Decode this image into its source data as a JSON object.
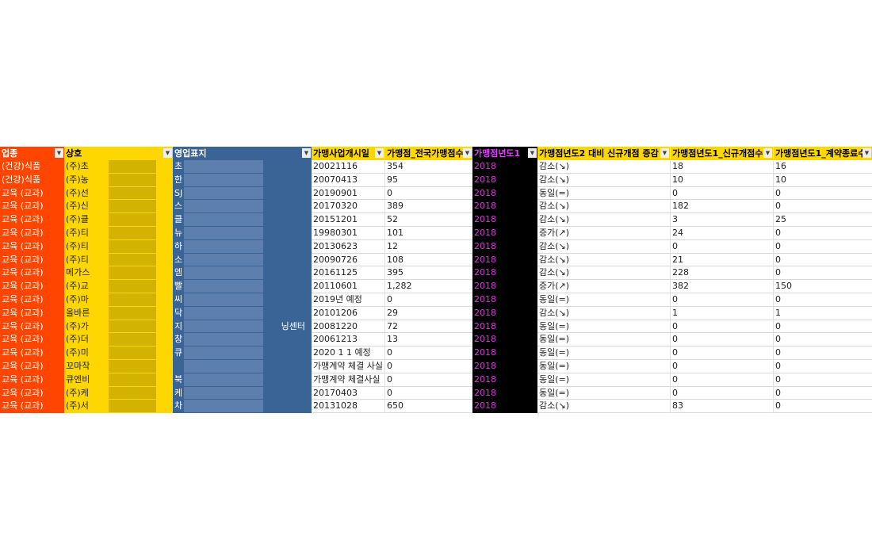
{
  "headers": [
    "업종",
    "상호",
    "영업표지",
    "가맹사업개시일",
    "가맹점_전국가맹점수",
    "가맹점년도1",
    "가맹점년도2 대비 신규개점 증감",
    "가맹점년도1_신규개점수",
    "가맹점년도1_계약종료수"
  ],
  "rows": [
    [
      "(건강)식품",
      "(주)초",
      "초",
      "20021116",
      "354",
      "2018",
      "감소(↘)",
      "18",
      "16"
    ],
    [
      "(건강)식품",
      "(주)농",
      "한",
      "20070413",
      "95",
      "2018",
      "감소(↘)",
      "10",
      "10"
    ],
    [
      "교육 (교과)",
      "(주)선",
      "SJ",
      "20190901",
      "0",
      "2018",
      "동일(=)",
      "0",
      "0"
    ],
    [
      "교육 (교과)",
      "(주)신",
      "스",
      "20170320",
      "389",
      "2018",
      "감소(↘)",
      "182",
      "0"
    ],
    [
      "교육 (교과)",
      "(주)클",
      "클",
      "20151201",
      "52",
      "2018",
      "감소(↘)",
      "3",
      "25"
    ],
    [
      "교육 (교과)",
      "(주)티",
      "뉴",
      "19980301",
      "101",
      "2018",
      "증가(↗)",
      "24",
      "0"
    ],
    [
      "교육 (교과)",
      "(주)티",
      "하",
      "20130623",
      "12",
      "2018",
      "감소(↘)",
      "0",
      "0"
    ],
    [
      "교육 (교과)",
      "(주)티",
      "소",
      "20090726",
      "108",
      "2018",
      "감소(↘)",
      "21",
      "0"
    ],
    [
      "교육 (교과)",
      "메가스",
      "엠",
      "20161125",
      "395",
      "2018",
      "감소(↘)",
      "228",
      "0"
    ],
    [
      "교육 (교과)",
      "(주)교",
      "빨",
      "20110601",
      "1,282",
      "2018",
      "증가(↗)",
      "382",
      "150"
    ],
    [
      "교육 (교과)",
      "(주)마",
      "씨",
      "2019년 예정",
      "0",
      "2018",
      "동일(=)",
      "0",
      "0"
    ],
    [
      "교육 (교과)",
      "올바른",
      "닥",
      "20101206",
      "29",
      "2018",
      "감소(↘)",
      "1",
      "1"
    ],
    [
      "교육 (교과)",
      "(주)가",
      "지",
      "20081220",
      "72",
      "2018",
      "동일(=)",
      "0",
      "0"
    ],
    [
      "교육 (교과)",
      "(주)더",
      "창",
      "20061213",
      "13",
      "2018",
      "동일(=)",
      "0",
      "0"
    ],
    [
      "교육 (교과)",
      "(주)미",
      "큐",
      "2020 1 1 예정",
      "0",
      "2018",
      "동일(=)",
      "0",
      "0"
    ],
    [
      "교육 (교과)",
      "꼬마작",
      "",
      "가맹계약 체결 사실",
      "0",
      "2018",
      "동일(=)",
      "0",
      "0"
    ],
    [
      "교육 (교과)",
      "큐엔비",
      "북",
      "가맹계약 체결사실",
      "0",
      "2018",
      "동일(=)",
      "0",
      "0"
    ],
    [
      "교육 (교과)",
      "(주)케",
      "케",
      "20170403",
      "0",
      "2018",
      "동일(=)",
      "0",
      "0"
    ],
    [
      "교육 (교과)",
      "(주)서",
      "차",
      "20131028",
      "650",
      "2018",
      "감소(↘)",
      "83",
      "0"
    ]
  ],
  "row13_trailing": "닝센터",
  "colors": {
    "industry": "#ff4500",
    "name": "#ffd700",
    "brand": "#3a6496",
    "year": "#000000"
  }
}
